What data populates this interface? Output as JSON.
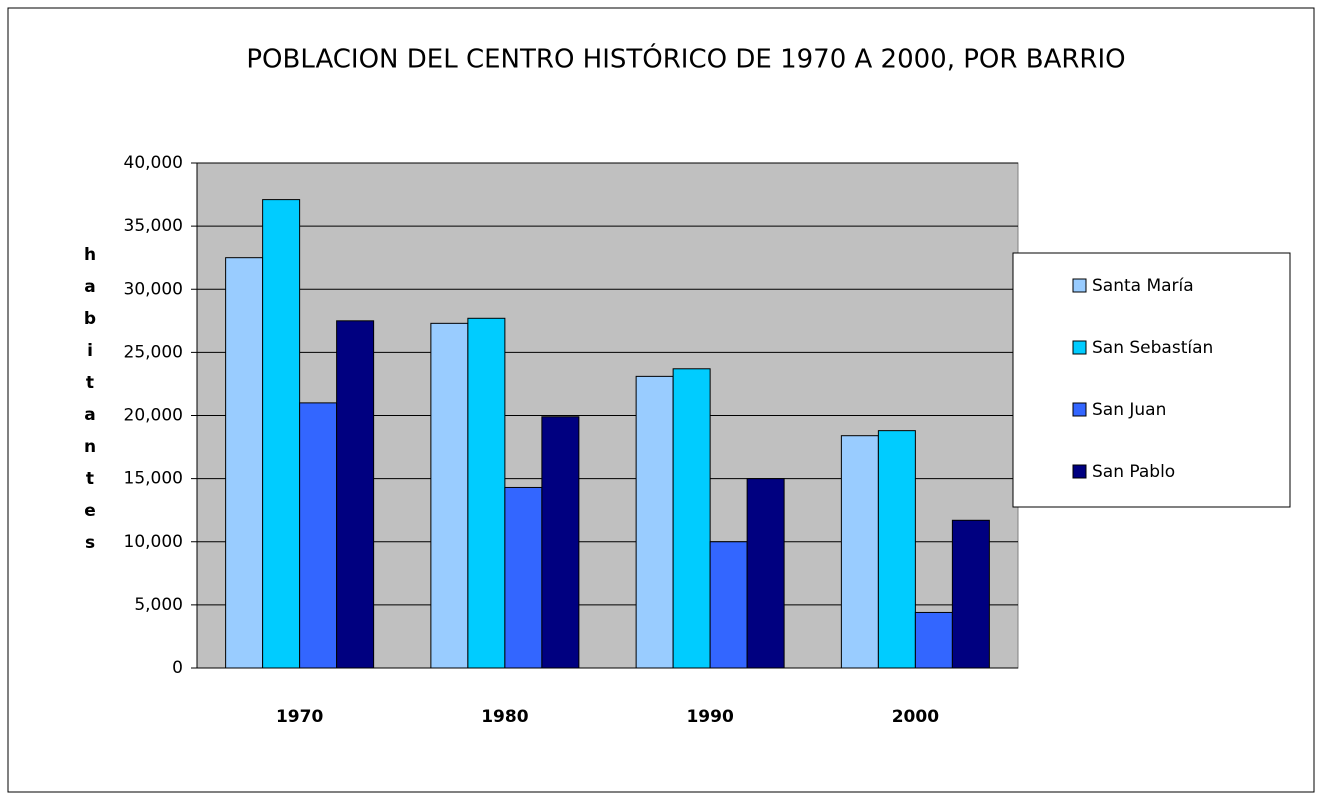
{
  "chart_data": {
    "type": "bar",
    "title": "POBLACION DEL CENTRO HISTÓRICO DE 1970 A 2000, POR BARRIO",
    "y_label": "habitantes",
    "categories": [
      "1970",
      "1980",
      "1990",
      "2000"
    ],
    "series": [
      {
        "name": "Santa María",
        "color": "#99ccff",
        "values": [
          32500,
          27300,
          23100,
          18400
        ]
      },
      {
        "name": "San Sebastían",
        "color": "#00ccff",
        "values": [
          37100,
          27700,
          23700,
          18800
        ]
      },
      {
        "name": "San Juan",
        "color": "#3366ff",
        "values": [
          21000,
          14300,
          10000,
          4400
        ]
      },
      {
        "name": "San Pablo",
        "color": "#000080",
        "values": [
          27500,
          19900,
          15000,
          11700
        ]
      }
    ],
    "ylim": [
      0,
      40000
    ],
    "yticks": [
      0,
      {
        "value": 5000,
        "label": "5,000"
      },
      {
        "value": 10000,
        "label": "10,000"
      },
      {
        "value": 15000,
        "label": "15,000"
      },
      {
        "value": 20000,
        "label": "20,000"
      },
      {
        "value": 25000,
        "label": "25,000"
      },
      {
        "value": 30000,
        "label": "30,000"
      },
      {
        "value": 35000,
        "label": "35,000"
      },
      {
        "value": 40000,
        "label": "40,000"
      }
    ],
    "grid": true,
    "legend": "right"
  }
}
